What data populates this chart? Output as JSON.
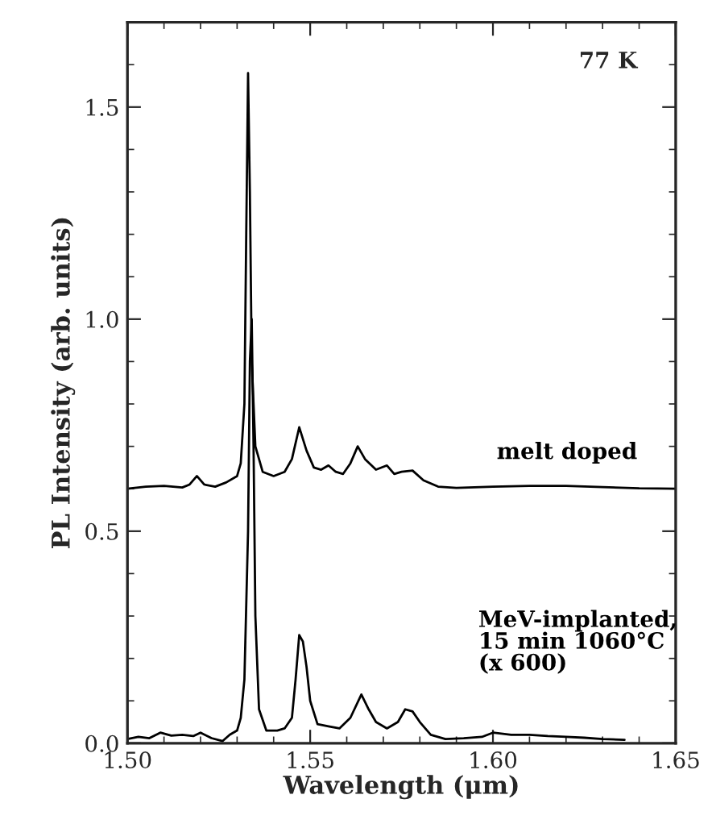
{
  "chart_data": {
    "type": "line",
    "xlabel": "Wavelength (μm)",
    "ylabel": "PL Intensity (arb. units)",
    "xlim": [
      1.5,
      1.65
    ],
    "xticks": [
      {
        "value": 1.5,
        "label": "1.50"
      },
      {
        "value": 1.55,
        "label": "1.55"
      },
      {
        "value": 1.6,
        "label": "1.60"
      },
      {
        "value": 1.65,
        "label": "1.65"
      }
    ],
    "ylim": [
      0,
      1.7
    ],
    "yticks": [
      {
        "value": 0,
        "label": "0.0"
      },
      {
        "value": 0.5,
        "label": "0.5"
      },
      {
        "value": 1.0,
        "label": "1.0"
      },
      {
        "value": 1.5,
        "label": "1.5"
      }
    ],
    "grid": false,
    "legend": false,
    "marker": "none",
    "line_style": "solid",
    "annotations": [
      "77 K"
    ],
    "series": [
      {
        "name": "melt doped",
        "color": "#000000",
        "x": [
          1.5,
          1.505,
          1.51,
          1.515,
          1.517,
          1.519,
          1.521,
          1.524,
          1.527,
          1.53,
          1.531,
          1.532,
          1.5325,
          1.533,
          1.5335,
          1.534,
          1.535,
          1.537,
          1.54,
          1.543,
          1.545,
          1.547,
          1.549,
          1.551,
          1.553,
          1.555,
          1.557,
          1.559,
          1.561,
          1.563,
          1.565,
          1.568,
          1.571,
          1.573,
          1.575,
          1.578,
          1.581,
          1.585,
          1.59,
          1.6,
          1.61,
          1.62,
          1.63,
          1.64,
          1.65
        ],
        "values": [
          0.6,
          0.605,
          0.607,
          0.603,
          0.61,
          0.63,
          0.61,
          0.605,
          0.615,
          0.63,
          0.66,
          0.8,
          1.2,
          1.58,
          1.3,
          0.9,
          0.7,
          0.64,
          0.63,
          0.64,
          0.67,
          0.745,
          0.69,
          0.65,
          0.645,
          0.655,
          0.64,
          0.635,
          0.66,
          0.7,
          0.67,
          0.645,
          0.655,
          0.635,
          0.64,
          0.643,
          0.62,
          0.605,
          0.602,
          0.605,
          0.607,
          0.607,
          0.604,
          0.601,
          0.6
        ]
      },
      {
        "name": "MeV-implanted,\n15 min 1060°C\n(x 600)",
        "color": "#000000",
        "x": [
          1.5,
          1.503,
          1.506,
          1.509,
          1.512,
          1.515,
          1.518,
          1.52,
          1.523,
          1.526,
          1.528,
          1.53,
          1.531,
          1.532,
          1.533,
          1.5335,
          1.534,
          1.5345,
          1.535,
          1.536,
          1.538,
          1.541,
          1.543,
          1.545,
          1.546,
          1.547,
          1.548,
          1.549,
          1.55,
          1.552,
          1.555,
          1.558,
          1.561,
          1.564,
          1.566,
          1.568,
          1.571,
          1.574,
          1.576,
          1.578,
          1.58,
          1.583,
          1.587,
          1.592,
          1.597,
          1.6,
          1.605,
          1.61,
          1.615,
          1.62,
          1.625,
          1.63,
          1.636
        ],
        "values": [
          0.01,
          0.015,
          0.012,
          0.025,
          0.018,
          0.02,
          0.017,
          0.025,
          0.012,
          0.005,
          0.02,
          0.03,
          0.06,
          0.15,
          0.5,
          0.9,
          1.0,
          0.7,
          0.3,
          0.08,
          0.03,
          0.03,
          0.035,
          0.06,
          0.15,
          0.255,
          0.24,
          0.18,
          0.1,
          0.045,
          0.04,
          0.035,
          0.06,
          0.115,
          0.08,
          0.05,
          0.035,
          0.05,
          0.08,
          0.075,
          0.05,
          0.02,
          0.01,
          0.012,
          0.015,
          0.025,
          0.02,
          0.02,
          0.017,
          0.015,
          0.013,
          0.01,
          0.008
        ]
      }
    ]
  }
}
